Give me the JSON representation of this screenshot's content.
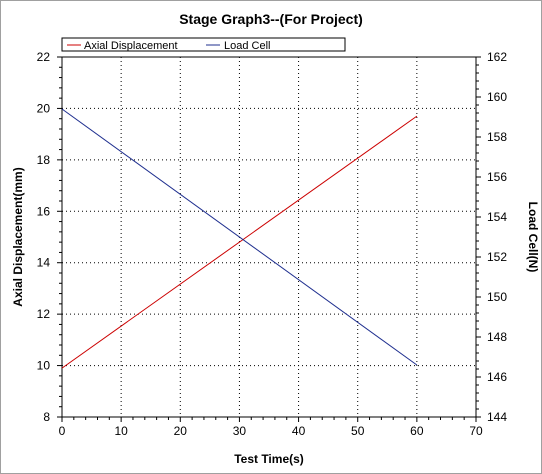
{
  "chart_data": {
    "type": "line",
    "title": "Stage Graph3--(For Project)",
    "xlabel": "Test Time(s)",
    "ylabel_left": "Axial Displacement(mm)",
    "ylabel_right": "Load Cell(N)",
    "xlim": [
      0,
      70
    ],
    "ylim_left": [
      8,
      22
    ],
    "ylim_right": [
      144,
      162
    ],
    "xticks": [
      0,
      10,
      20,
      30,
      40,
      50,
      60,
      70
    ],
    "yticks_left": [
      8,
      10,
      12,
      14,
      16,
      18,
      20,
      22
    ],
    "yticks_right": [
      144,
      146,
      148,
      150,
      152,
      154,
      156,
      158,
      160,
      162
    ],
    "grid": true,
    "legend_position": "top",
    "series": [
      {
        "name": "Axial Displacement",
        "axis": "left",
        "color": "#cc0000",
        "x": [
          0,
          60
        ],
        "y": [
          9.9,
          19.7
        ]
      },
      {
        "name": "Load Cell",
        "axis": "right",
        "color": "#1f2f8f",
        "x": [
          0,
          60
        ],
        "y": [
          159.4,
          146.6
        ]
      }
    ]
  }
}
